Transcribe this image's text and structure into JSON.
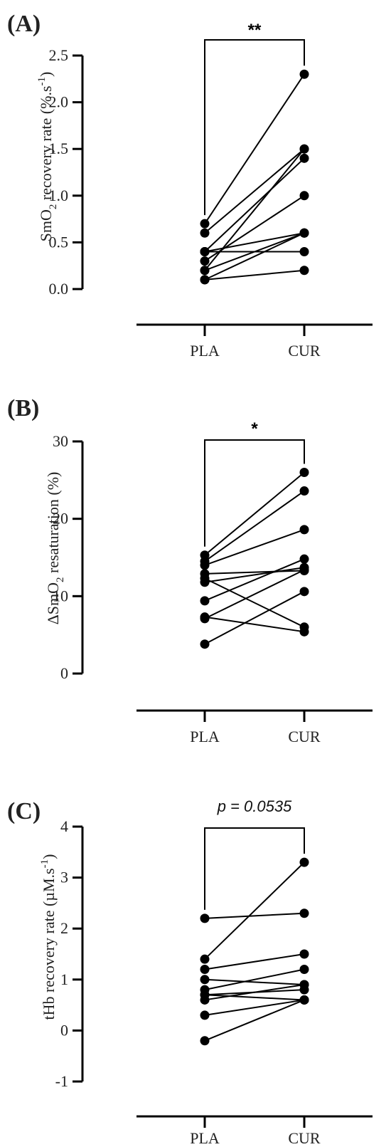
{
  "chart_data": [
    {
      "type": "scatter",
      "panel": "(A)",
      "ylabel": "SmO₂ recovery rate (%.s⁻¹)",
      "ylabel_parts": [
        "SmO",
        "2",
        " recovery rate (%.s",
        "-1",
        ")"
      ],
      "categories": [
        "PLA",
        "CUR"
      ],
      "ylim": [
        0,
        2.5
      ],
      "yticks": [
        "0.0",
        "0.5",
        "1.0",
        "1.5",
        "2.0",
        "2.5"
      ],
      "ytick_values": [
        0,
        0.5,
        1.0,
        1.5,
        2.0,
        2.5
      ],
      "pairs": [
        [
          0.7,
          2.3
        ],
        [
          0.6,
          1.5
        ],
        [
          0.4,
          1.4
        ],
        [
          0.4,
          0.6
        ],
        [
          0.4,
          0.4
        ],
        [
          0.3,
          1.0
        ],
        [
          0.2,
          1.5
        ],
        [
          0.2,
          0.6
        ],
        [
          0.1,
          0.6
        ],
        [
          0.1,
          0.2
        ]
      ],
      "significance": "**"
    },
    {
      "type": "scatter",
      "panel": "(B)",
      "ylabel": "ΔSmO₂ resaturation (%)",
      "ylabel_parts": [
        "ΔSmO",
        "2",
        " resaturation (%)",
        "",
        ""
      ],
      "categories": [
        "PLA",
        "CUR"
      ],
      "ylim": [
        0,
        30
      ],
      "yticks": [
        "0",
        "10",
        "20",
        "30"
      ],
      "ytick_values": [
        0,
        10,
        20,
        30
      ],
      "pairs": [
        [
          15.3,
          26.0
        ],
        [
          14.5,
          23.6
        ],
        [
          14.0,
          18.6
        ],
        [
          12.9,
          13.3
        ],
        [
          12.3,
          6.0
        ],
        [
          11.8,
          13.7
        ],
        [
          9.4,
          14.8
        ],
        [
          7.3,
          5.4
        ],
        [
          7.1,
          13.4
        ],
        [
          3.8,
          10.6
        ]
      ],
      "significance": "*"
    },
    {
      "type": "scatter",
      "panel": "(C)",
      "ylabel": "tHb recovery rate (µM.s⁻¹)",
      "ylabel_parts": [
        "tHb recovery rate (µM.s",
        "",
        "",
        "-1",
        ")"
      ],
      "categories": [
        "PLA",
        "CUR"
      ],
      "ylim": [
        -1,
        4
      ],
      "yticks": [
        "-1",
        "0",
        "1",
        "2",
        "3",
        "4"
      ],
      "ytick_values": [
        -1,
        0,
        1,
        2,
        3,
        4
      ],
      "pairs": [
        [
          2.2,
          2.3
        ],
        [
          1.4,
          3.3
        ],
        [
          1.2,
          1.5
        ],
        [
          1.0,
          0.9
        ],
        [
          0.8,
          1.2
        ],
        [
          0.7,
          0.6
        ],
        [
          0.7,
          0.8
        ],
        [
          0.6,
          0.9
        ],
        [
          0.3,
          0.6
        ],
        [
          -0.2,
          0.6
        ]
      ],
      "significance": "p = 0.0535"
    }
  ]
}
